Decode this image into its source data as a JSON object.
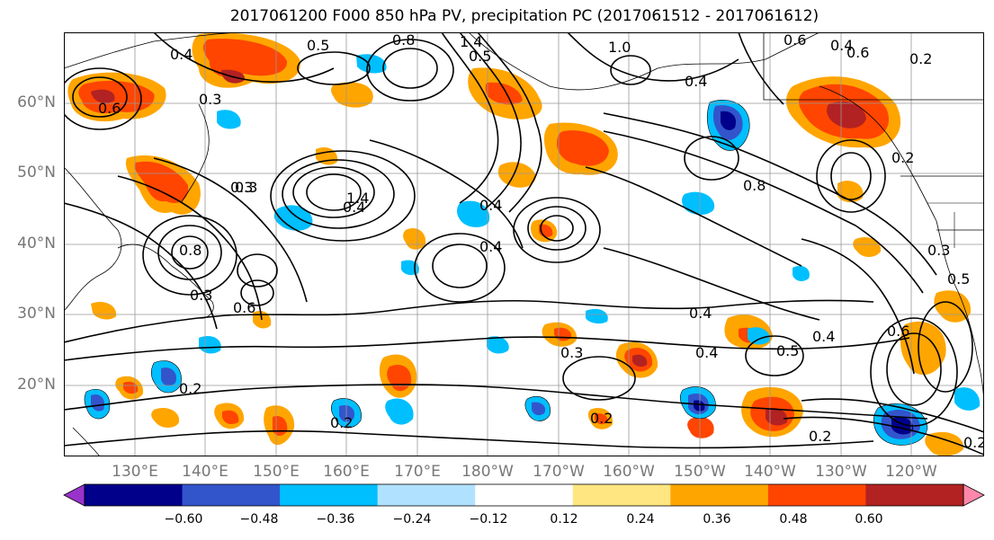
{
  "figure": {
    "title": "2017061200 F000 850 hPa PV, precipitation PC (2017061512 - 2017061612)"
  },
  "map": {
    "projection": "plate-carree",
    "lon_range": [
      "120°E",
      "115°W"
    ],
    "lat_range": [
      "10°N",
      "70°N"
    ],
    "lat_ticks": [
      "20°N",
      "30°N",
      "40°N",
      "50°N",
      "60°N"
    ],
    "lon_ticks": [
      "130°E",
      "140°E",
      "150°E",
      "160°E",
      "170°E",
      "180°W",
      "170°W",
      "160°W",
      "150°W",
      "140°W",
      "130°W",
      "120°W"
    ],
    "grid": true,
    "contour_labels": [
      "0.4",
      "0.5",
      "0.8",
      "1.4",
      "1.0",
      "0.4",
      "0.6",
      "0.4",
      "0.2",
      "0.3",
      "0.6",
      "0.3",
      "0.8",
      "0.3",
      "0.2",
      "0.4",
      "0.8",
      "0.4",
      "0.4",
      "0.6",
      "0.4",
      "0.5",
      "0.3",
      "0.6",
      "0.2",
      "0.4",
      "0.3",
      "0.2",
      "0.2",
      "0.2",
      "0.3",
      "0.5",
      "0.4",
      "0.6",
      "0.2",
      "0.5",
      "1.4"
    ]
  },
  "colorbar": {
    "levels": [
      "−0.60",
      "−0.48",
      "−0.36",
      "−0.24",
      "−0.12",
      "0.12",
      "0.24",
      "0.36",
      "0.48",
      "0.60"
    ],
    "colors": [
      "#9933cc",
      "#00008b",
      "#3355cc",
      "#00bfff",
      "#b0e2ff",
      "#ffffff",
      "#ffe680",
      "#ffa500",
      "#ff4500",
      "#b22222",
      "#ff88aa"
    ],
    "extend": "both"
  }
}
